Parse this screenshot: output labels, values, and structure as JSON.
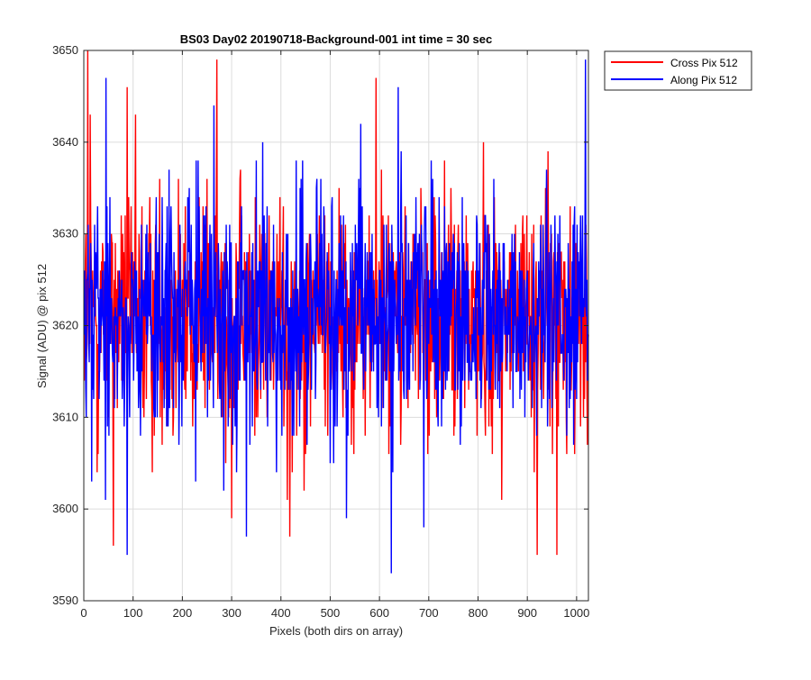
{
  "chart_data": {
    "type": "line",
    "title": "BS03 Day02 20190718-Background-001 int time = 30 sec",
    "xlabel": "Pixels (both dirs on array)",
    "ylabel": "Signal (ADU) @ pix 512",
    "xlim": [
      0,
      1024
    ],
    "ylim": [
      3590,
      3650
    ],
    "xticks": [
      0,
      100,
      200,
      300,
      400,
      500,
      600,
      700,
      800,
      900,
      1000
    ],
    "yticks": [
      3590,
      3600,
      3610,
      3620,
      3630,
      3640,
      3650
    ],
    "grid": true,
    "legend_position": "outside-top-right",
    "series": [
      {
        "name": "Cross Pix 512",
        "color": "#ff0000",
        "x_range": [
          1,
          1024
        ],
        "approx_mean": 3621,
        "approx_range": [
          3595,
          3650
        ],
        "notable_points": [
          [
            8,
            3650
          ],
          [
            13,
            3643
          ],
          [
            27,
            3604
          ],
          [
            60,
            3596
          ],
          [
            88,
            3646
          ],
          [
            105,
            3643
          ],
          [
            270,
            3649
          ],
          [
            300,
            3599
          ],
          [
            413,
            3601
          ],
          [
            418,
            3597
          ],
          [
            593,
            3647
          ],
          [
            920,
            3595
          ],
          [
            960,
            3595
          ]
        ]
      },
      {
        "name": "Along Pix 512",
        "color": "#0000ff",
        "x_range": [
          1,
          1024
        ],
        "approx_mean": 3621,
        "approx_range": [
          3593,
          3649
        ],
        "notable_points": [
          [
            45,
            3647
          ],
          [
            88,
            3595
          ],
          [
            264,
            3644
          ],
          [
            330,
            3597
          ],
          [
            363,
            3640
          ],
          [
            624,
            3593
          ],
          [
            638,
            3646
          ],
          [
            690,
            3598
          ],
          [
            1018,
            3649
          ]
        ]
      }
    ]
  }
}
